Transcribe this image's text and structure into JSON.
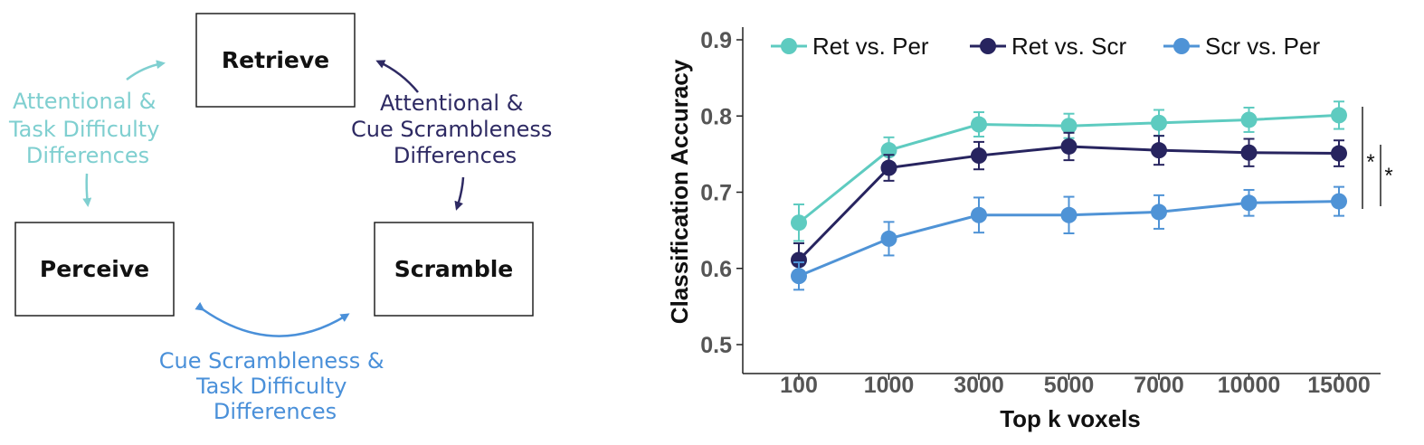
{
  "diagram": {
    "boxes": [
      {
        "id": "retrieve",
        "label": "Retrieve"
      },
      {
        "id": "perceive",
        "label": "Perceive"
      },
      {
        "id": "scramble",
        "label": "Scramble"
      }
    ],
    "differences": [
      {
        "id": "ret-per",
        "lines": [
          "Attentional &",
          "Task Difficulty",
          "Differences"
        ],
        "color": "#7fcfd0"
      },
      {
        "id": "ret-scr",
        "lines": [
          "Attentional &",
          "Cue Scrambleness",
          "Differences"
        ],
        "color": "#2e2a63"
      },
      {
        "id": "scr-per",
        "lines": [
          "Cue Scrambleness &",
          "Task Difficulty",
          "Differences"
        ],
        "color": "#4a90d9"
      }
    ]
  },
  "chart_data": {
    "type": "line",
    "categories": [
      "100",
      "1000",
      "3000",
      "5000",
      "7000",
      "10000",
      "15000"
    ],
    "xlabel": "Top k voxels",
    "ylabel": "Classification Accuracy",
    "ylim": [
      0.5,
      0.9
    ],
    "yticks": [
      "0.5",
      "0.6",
      "0.7",
      "0.8",
      "0.9"
    ],
    "legend": "top",
    "series": [
      {
        "name": "Ret vs. Per",
        "color": "#5ecbc0",
        "values": [
          0.66,
          0.755,
          0.789,
          0.787,
          0.791,
          0.795,
          0.801
        ],
        "errors": [
          0.024,
          0.017,
          0.016,
          0.016,
          0.017,
          0.016,
          0.018
        ]
      },
      {
        "name": "Ret vs. Scr",
        "color": "#27245f",
        "values": [
          0.611,
          0.732,
          0.748,
          0.76,
          0.755,
          0.752,
          0.751
        ],
        "errors": [
          0.022,
          0.017,
          0.018,
          0.018,
          0.019,
          0.018,
          0.017
        ]
      },
      {
        "name": "Scr vs. Per",
        "color": "#4f93d6",
        "values": [
          0.59,
          0.639,
          0.67,
          0.67,
          0.674,
          0.686,
          0.688
        ],
        "errors": [
          0.018,
          0.022,
          0.023,
          0.024,
          0.022,
          0.017,
          0.019
        ]
      }
    ],
    "significance": [
      "*",
      "*"
    ]
  }
}
